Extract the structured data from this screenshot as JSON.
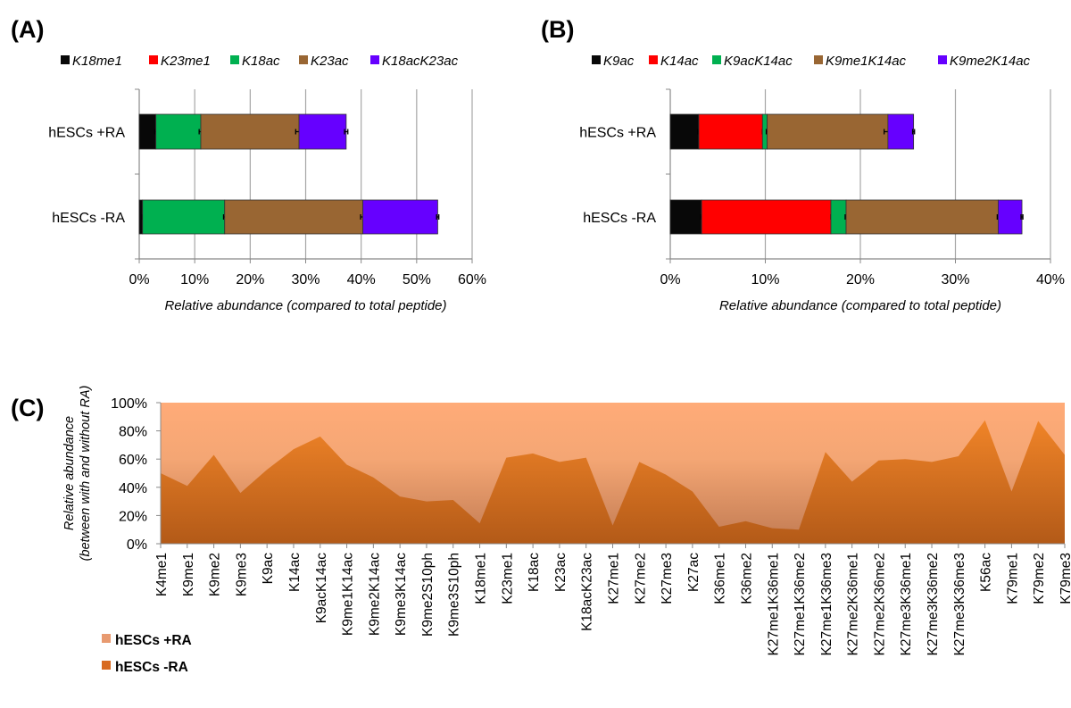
{
  "chart_data": [
    {
      "panel_label": "(A)",
      "type": "bar",
      "orientation": "horizontal-stacked",
      "categories": [
        "hESCs +RA",
        "hESCs -RA"
      ],
      "series": [
        {
          "name": "K18me1",
          "color": "#080808",
          "values": [
            3.0,
            0.6
          ],
          "errors": [
            0.2,
            0.1
          ]
        },
        {
          "name": "K23me1",
          "color": "#ff0000",
          "values": [
            0.0,
            0.0
          ],
          "errors": [
            0,
            0
          ]
        },
        {
          "name": "K18ac",
          "color": "#00b050",
          "values": [
            8.1,
            14.8
          ],
          "errors": [
            0.3,
            0.2
          ]
        },
        {
          "name": "K23ac",
          "color": "#996633",
          "values": [
            17.7,
            24.9
          ],
          "errors": [
            0.6,
            0.4
          ]
        },
        {
          "name": "K18acK23ac",
          "color": "#6600ff",
          "values": [
            8.5,
            13.5
          ],
          "errors": [
            0.3,
            0.2
          ]
        }
      ],
      "xlabel": "Relative abundance (compared to total peptide)",
      "xlim": [
        0,
        60
      ],
      "xticks": [
        "0%",
        "10%",
        "20%",
        "30%",
        "40%",
        "50%",
        "60%"
      ],
      "grid": true,
      "legend": "top"
    },
    {
      "panel_label": "(B)",
      "type": "bar",
      "orientation": "horizontal-stacked",
      "categories": [
        "hESCs +RA",
        "hESCs -RA"
      ],
      "series": [
        {
          "name": "K9ac",
          "color": "#080808",
          "values": [
            3.0,
            3.3
          ],
          "errors": [
            0.1,
            0.1
          ]
        },
        {
          "name": "K14ac",
          "color": "#ff0000",
          "values": [
            6.7,
            13.6
          ],
          "errors": [
            0,
            0
          ]
        },
        {
          "name": "K9acK14ac",
          "color": "#00b050",
          "values": [
            0.5,
            1.6
          ],
          "errors": [
            0.1,
            0.1
          ]
        },
        {
          "name": "K9me1K14ac",
          "color": "#996633",
          "values": [
            12.7,
            16.0
          ],
          "errors": [
            0.4,
            0.1
          ]
        },
        {
          "name": "K9me2K14ac",
          "color": "#6600ff",
          "values": [
            2.7,
            2.5
          ],
          "errors": [
            0.1,
            0.1
          ]
        }
      ],
      "xlabel": "Relative abundance (compared to total peptide)",
      "xlim": [
        0,
        40
      ],
      "xticks": [
        "0%",
        "10%",
        "20%",
        "30%",
        "40%"
      ],
      "grid": true,
      "legend": "top"
    },
    {
      "panel_label": "(C)",
      "type": "area",
      "stacked": "100%",
      "categories": [
        "K4me1",
        "K9me1",
        "K9me2",
        "K9me3",
        "K9ac",
        "K14ac",
        "K9acK14ac",
        "K9me1K14ac",
        "K9me2K14ac",
        "K9me3K14ac",
        "K9me2S10ph",
        "K9me3S10ph",
        "K18me1",
        "K23me1",
        "K18ac",
        "K23ac",
        "K18acK23ac",
        "K27me1",
        "K27me2",
        "K27me3",
        "K27ac",
        "K36me1",
        "K36me2",
        "K27me1K36me1",
        "K27me1K36me2",
        "K27me1K36me3",
        "K27me2K36me1",
        "K27me2K36me2",
        "K27me3K36me1",
        "K27me3K36me2",
        "K27me3K36me3",
        "K56ac",
        "K79me1",
        "K79me2",
        "K79me3"
      ],
      "series": [
        {
          "name": "hESCs -RA",
          "color": "#e07d26",
          "values": [
            50,
            41,
            63,
            36,
            52.5,
            67,
            76,
            56,
            47,
            33.5,
            30,
            31,
            14.5,
            61,
            64,
            58,
            61,
            13,
            58,
            49,
            37,
            12,
            16,
            11,
            10,
            65,
            44,
            59,
            60,
            58,
            62,
            87.5,
            37,
            87,
            63
          ]
        },
        {
          "name": "hESCs +RA",
          "color": "#ffaa77",
          "values": [
            50,
            59,
            37,
            64,
            47.5,
            33,
            24,
            44,
            53,
            66.5,
            70,
            69,
            85.5,
            39,
            36,
            42,
            39,
            87,
            42,
            51,
            63,
            88,
            84,
            89,
            90,
            35,
            56,
            41,
            40,
            42,
            38,
            12.5,
            63,
            13,
            37
          ]
        }
      ],
      "ylabel": "Relative abundance",
      "ylabel2": "(between with and without RA)",
      "ylim": [
        0,
        100
      ],
      "yticks": [
        "0%",
        "20%",
        "40%",
        "60%",
        "80%",
        "100%"
      ],
      "legend": "bottom-left",
      "legend_entries": [
        "hESCs +RA",
        "hESCs -RA"
      ]
    }
  ]
}
